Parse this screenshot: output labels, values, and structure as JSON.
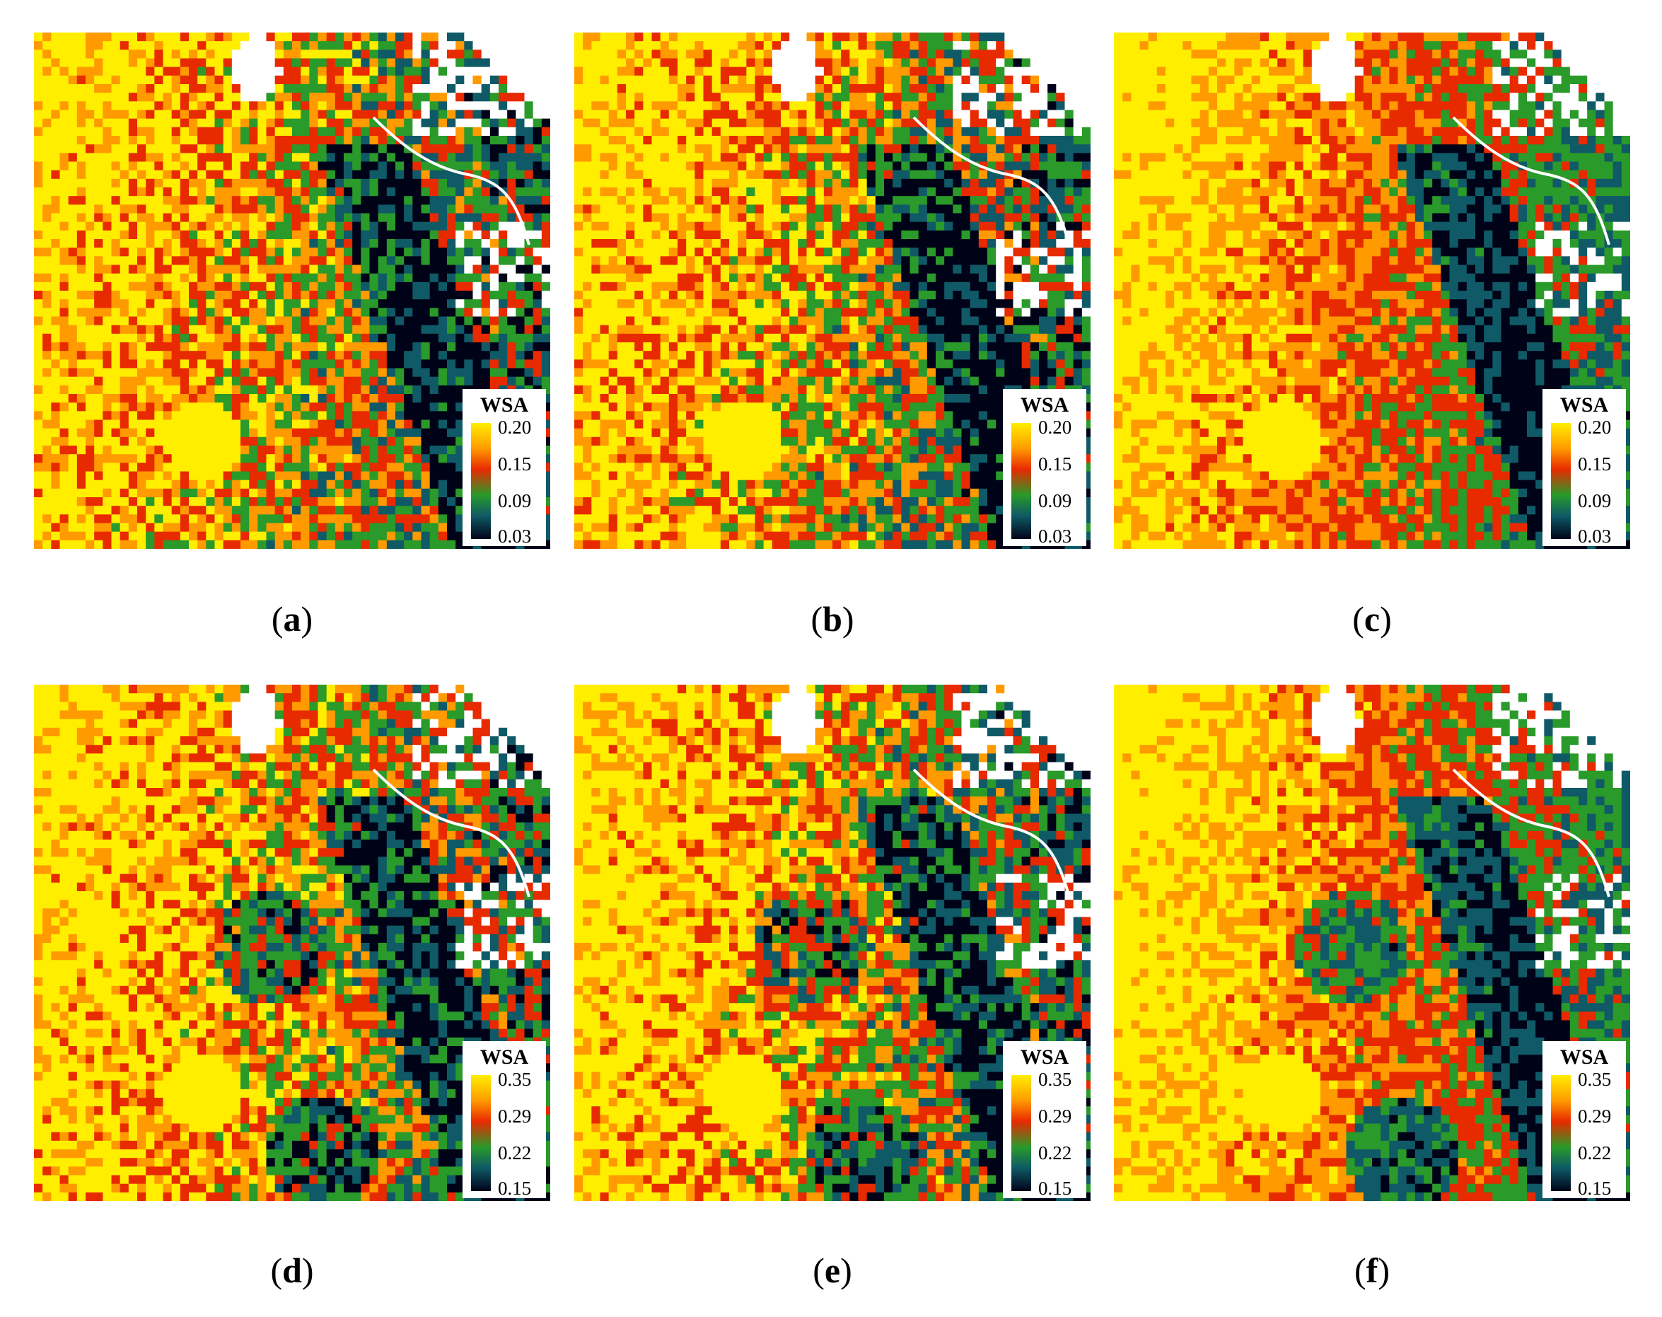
{
  "panels": [
    {
      "label": "a",
      "legend": {
        "title": "WSA",
        "ticks": [
          "0.20",
          "0.15",
          "0.09",
          "0.03"
        ]
      }
    },
    {
      "label": "b",
      "legend": {
        "title": "WSA",
        "ticks": [
          "0.20",
          "0.15",
          "0.09",
          "0.03"
        ]
      }
    },
    {
      "label": "c",
      "legend": {
        "title": "WSA",
        "ticks": [
          "0.20",
          "0.15",
          "0.09",
          "0.03"
        ]
      }
    },
    {
      "label": "d",
      "legend": {
        "title": "WSA",
        "ticks": [
          "0.35",
          "0.29",
          "0.22",
          "0.15"
        ]
      }
    },
    {
      "label": "e",
      "legend": {
        "title": "WSA",
        "ticks": [
          "0.35",
          "0.29",
          "0.22",
          "0.15"
        ]
      }
    },
    {
      "label": "f",
      "legend": {
        "title": "WSA",
        "ticks": [
          "0.35",
          "0.29",
          "0.22",
          "0.15"
        ]
      }
    }
  ],
  "colormap": [
    "#ffee00",
    "#ff9a00",
    "#e82a00",
    "#2a9a2a",
    "#0f5a66",
    "#000318"
  ]
}
